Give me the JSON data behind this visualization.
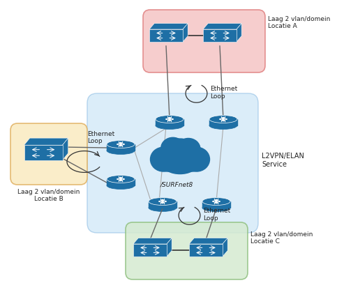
{
  "bg_color": "#ffffff",
  "router_color": "#1e6fa5",
  "switch_color": "#1e6fa5",
  "cloud_color": "#1e6fa5",
  "l2vpn_bg": "#d0e8f8",
  "l2vpn_border": "#a0c8e8",
  "loc_a_bg": "#f5c5c5",
  "loc_a_border": "#e08080",
  "loc_b_bg": "#faeac0",
  "loc_b_border": "#e0b060",
  "loc_c_bg": "#d5ead0",
  "loc_c_border": "#90c080",
  "loc_a_label": "Laag 2 vlan/domein\nLocatie A",
  "loc_b_label": "Laag 2 vlan/domein\nLocatie B",
  "loc_c_label": "Laag 2 vlan/domein\nLocatie C",
  "l2vpn_label": "L2VPN/ELAN\nService",
  "surfnet_label": "/SURFnet8",
  "ethernet_loop_label": "Ethernet\nLoop",
  "line_color": "#666666",
  "arrow_color": "#333333"
}
